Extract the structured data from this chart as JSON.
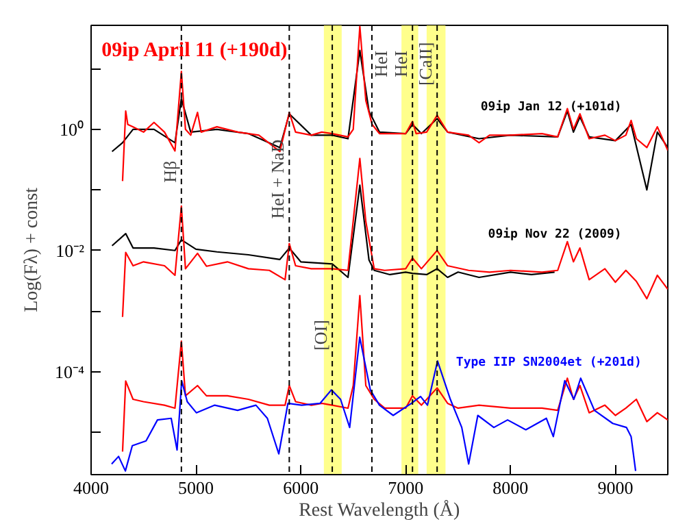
{
  "chart_data": {
    "type": "line",
    "xlabel": "Rest Wavelength (Å)",
    "ylabel": "Log(Fλ) + const",
    "log": "y",
    "grid": false,
    "xlim": [
      4000,
      9500
    ],
    "xticks": [
      4000,
      5000,
      6000,
      7000,
      8000,
      9000
    ],
    "ylim": [
      2e-06,
      52
    ],
    "yticks": [
      {
        "value": 10,
        "label": null
      },
      {
        "value": 1,
        "label": "10⁰"
      },
      {
        "value": 0.1,
        "label": null
      },
      {
        "value": 0.01,
        "label": "10⁻²"
      },
      {
        "value": 0.001,
        "label": null
      },
      {
        "value": 0.0001,
        "label": "10⁻⁴"
      },
      {
        "value": 1e-05,
        "label": null
      }
    ],
    "series": [
      {
        "name": "09ip Jan 12 (+101d)",
        "color": "#000000",
        "x": [
          4200,
          4300,
          4400,
          4600,
          4800,
          4861,
          4950,
          5200,
          5500,
          5800,
          5890,
          6100,
          6300,
          6450,
          6563,
          6650,
          6750,
          7000,
          7065,
          7150,
          7300,
          7400,
          7700,
          8000,
          8450,
          8542,
          8600,
          8662,
          8750,
          9000,
          9150,
          9300,
          9400,
          9500
        ],
        "values": [
          0.43,
          0.6,
          1.0,
          1.0,
          0.6,
          3.2,
          0.9,
          1.0,
          0.85,
          0.5,
          1.8,
          0.8,
          0.8,
          0.7,
          20,
          2,
          0.9,
          0.85,
          1.2,
          0.85,
          1.5,
          0.9,
          0.7,
          0.8,
          0.75,
          2.0,
          0.9,
          1.6,
          0.75,
          0.65,
          1.2,
          0.1,
          0.9,
          0.5
        ]
      },
      {
        "name": "09ip April 11 (+190d)",
        "color": "#ff0000",
        "x": [
          4300,
          4330,
          4350,
          4400,
          4500,
          4600,
          4700,
          4800,
          4861,
          4900,
          4950,
          5015,
          5050,
          5200,
          5400,
          5600,
          5800,
          5890,
          5950,
          6100,
          6200,
          6300,
          6450,
          6500,
          6563,
          6620,
          6680,
          6750,
          7000,
          7065,
          7100,
          7200,
          7300,
          7400,
          7600,
          7700,
          7800,
          8000,
          8300,
          8450,
          8542,
          8600,
          8662,
          8750,
          8900,
          9000,
          9100,
          9150,
          9200,
          9300,
          9400,
          9500
        ],
        "values": [
          0.14,
          2.0,
          1.2,
          1.1,
          0.9,
          1.3,
          0.9,
          0.44,
          9,
          1.0,
          0.8,
          1.9,
          0.9,
          1.1,
          0.9,
          0.8,
          0.43,
          1.9,
          0.9,
          0.8,
          0.9,
          0.85,
          0.75,
          1.0,
          50,
          3,
          1.2,
          0.85,
          0.85,
          1.35,
          0.85,
          0.9,
          1.7,
          0.9,
          0.8,
          0.6,
          0.8,
          0.8,
          0.85,
          0.75,
          2.2,
          1.0,
          1.8,
          0.7,
          0.8,
          0.65,
          0.8,
          1.4,
          0.7,
          0.5,
          1.1,
          0.45
        ]
      },
      {
        "name": "09ip Nov 22 (2009)",
        "color": "#000000",
        "x": [
          4200,
          4330,
          4400,
          4600,
          4800,
          4861,
          5000,
          5200,
          5500,
          5800,
          5890,
          6000,
          6300,
          6450,
          6563,
          6650,
          6700,
          6850,
          7000,
          7065,
          7200,
          7300,
          7400,
          7500,
          7700,
          8000,
          8200,
          8420
        ],
        "values": [
          0.012,
          0.019,
          0.011,
          0.011,
          0.01,
          0.015,
          0.0105,
          0.0095,
          0.0085,
          0.0071,
          0.011,
          0.0065,
          0.006,
          0.0036,
          0.12,
          0.007,
          0.0047,
          0.004,
          0.0044,
          0.0042,
          0.004,
          0.005,
          0.0036,
          0.0044,
          0.0036,
          0.0044,
          0.004,
          0.0044
        ]
      },
      {
        "color": "#ff0000",
        "x": [
          4300,
          4330,
          4400,
          4500,
          4700,
          4800,
          4861,
          4900,
          5015,
          5100,
          5300,
          5500,
          5700,
          5850,
          5890,
          5950,
          6100,
          6300,
          6450,
          6563,
          6620,
          6700,
          6800,
          7000,
          7065,
          7150,
          7300,
          7400,
          7600,
          7800,
          8000,
          8300,
          8450,
          8542,
          8600,
          8662,
          8750,
          8900,
          9000,
          9100,
          9200,
          9300,
          9400,
          9500
        ],
        "values": [
          0.0008,
          0.0093,
          0.0056,
          0.0065,
          0.0056,
          0.0039,
          0.054,
          0.005,
          0.009,
          0.0055,
          0.0065,
          0.005,
          0.0047,
          0.0033,
          0.013,
          0.0056,
          0.005,
          0.005,
          0.0047,
          0.33,
          0.03,
          0.005,
          0.0047,
          0.005,
          0.0075,
          0.005,
          0.01,
          0.0056,
          0.0047,
          0.0044,
          0.0047,
          0.0044,
          0.0047,
          0.014,
          0.0065,
          0.011,
          0.0033,
          0.005,
          0.003,
          0.0047,
          0.0031,
          0.0016,
          0.0039,
          0.0023
        ]
      },
      {
        "color": "#ff0000",
        "x": [
          4300,
          4330,
          4400,
          4500,
          4700,
          4800,
          4861,
          4900,
          5015,
          5100,
          5300,
          5500,
          5700,
          5850,
          5890,
          5950,
          6100,
          6200,
          6300,
          6450,
          6500,
          6563,
          6620,
          6700,
          6800,
          7000,
          7065,
          7150,
          7300,
          7400,
          7500,
          7700,
          8000,
          8300,
          8450,
          8542,
          8600,
          8662,
          8750,
          8900,
          9000,
          9100,
          9200,
          9300,
          9400,
          9500
        ],
        "values": [
          4.8e-06,
          7e-05,
          3.5e-05,
          3.2e-05,
          2.8e-05,
          2.5e-05,
          0.00032,
          4e-05,
          5.9e-05,
          4e-05,
          4e-05,
          3.5e-05,
          2.8e-05,
          2.8e-05,
          5.9e-05,
          3.2e-05,
          2.8e-05,
          3e-05,
          2.8e-05,
          2.5e-05,
          5.9e-05,
          0.0018,
          5.9e-05,
          3.5e-05,
          2.5e-05,
          2.5e-05,
          4e-05,
          2.8e-05,
          5.4e-05,
          3e-05,
          2.5e-05,
          2.8e-05,
          2.5e-05,
          2.5e-05,
          2.3e-05,
          7.8e-05,
          3.5e-05,
          5.9e-05,
          2.1e-05,
          2.8e-05,
          1.9e-05,
          2.5e-05,
          3.5e-05,
          1.5e-05,
          2.1e-05,
          1.6e-05
        ]
      },
      {
        "name": "Type IIP SN2004et (+201d)",
        "color": "#0000ff",
        "x": [
          4196,
          4262,
          4327,
          4393,
          4524,
          4633,
          4764,
          4820,
          4864,
          4917,
          5004,
          5179,
          5397,
          5572,
          5681,
          5790,
          5877,
          6008,
          6183,
          6292,
          6379,
          6466,
          6562,
          6663,
          6750,
          6881,
          7055,
          7142,
          7208,
          7304,
          7426,
          7535,
          7601,
          7688,
          7841,
          7972,
          8146,
          8342,
          8408,
          8517,
          8604,
          8669,
          8800,
          8975,
          9106,
          9150,
          9193
        ],
        "values": [
          3e-06,
          4e-06,
          2.3e-06,
          6e-06,
          7.2e-06,
          1.6e-05,
          1.7e-05,
          5.1e-06,
          7.1e-05,
          3.2e-05,
          2.1e-05,
          2.8e-05,
          2.3e-05,
          2.8e-05,
          1.7e-05,
          4.4e-06,
          3e-05,
          2.8e-05,
          3e-05,
          5e-05,
          3.5e-05,
          1.2e-05,
          0.00037,
          5e-05,
          2.8e-05,
          1.9e-05,
          3e-05,
          3.9e-05,
          2.8e-05,
          0.00015,
          3.5e-05,
          1.2e-05,
          3e-06,
          1.9e-05,
          1.2e-05,
          1.6e-05,
          1.1e-05,
          1.7e-05,
          8.5e-06,
          7.1e-05,
          3.5e-05,
          7.8e-05,
          2.3e-05,
          1.4e-05,
          1.2e-05,
          8.5e-06,
          2.3e-06
        ]
      }
    ],
    "ref_lines": [
      {
        "axis": "x",
        "value": 4861,
        "label": "Hβ",
        "line_style": "dashed"
      },
      {
        "axis": "x",
        "value": 5890,
        "label": "HeI + NaD",
        "line_style": "dashed"
      },
      {
        "axis": "x",
        "value": 6300,
        "label": "[OI]",
        "line_style": "dashed"
      },
      {
        "axis": "x",
        "value": 6678,
        "label": "HeI",
        "line_style": "dashed"
      },
      {
        "axis": "x",
        "value": 7065,
        "label": "HeI",
        "line_style": "dashed"
      },
      {
        "axis": "x",
        "value": 7300,
        "label": "[CaII]",
        "line_style": "dashed"
      }
    ],
    "bands": [
      {
        "axis": "x",
        "from": 6220,
        "to": 6390,
        "color": "#ffff66"
      },
      {
        "axis": "x",
        "from": 6960,
        "to": 7120,
        "color": "#ffff66"
      },
      {
        "axis": "x",
        "from": 7200,
        "to": 7380,
        "color": "#ffff66"
      }
    ]
  }
}
